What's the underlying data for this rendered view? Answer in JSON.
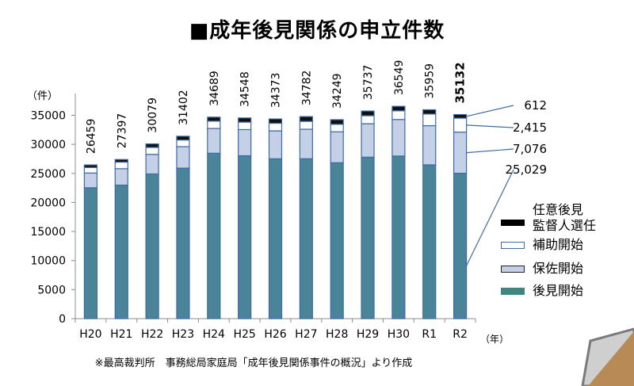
{
  "title": "■成年後見関係の申立件数",
  "source_note": "※最高裁判所　事務総局家庭局「成年後見関係事件の概況」より作成",
  "chart_data": {
    "type": "bar",
    "stacked": true,
    "title": "■成年後見関係の申立件数",
    "ylabel": "（件）",
    "xlabel": "（年）",
    "ylim": [
      0,
      35000
    ],
    "yticks": [
      0,
      5000,
      10000,
      15000,
      20000,
      25000,
      30000,
      35000
    ],
    "categories": [
      "H20",
      "H21",
      "H22",
      "H23",
      "H24",
      "H25",
      "H26",
      "H27",
      "H28",
      "H29",
      "H30",
      "R1",
      "R2"
    ],
    "totals": [
      26459,
      27397,
      30079,
      31402,
      34689,
      34548,
      34373,
      34782,
      34249,
      35737,
      36549,
      35959,
      35132
    ],
    "series": [
      {
        "name": "後見開始",
        "color": "#4a8499",
        "values": [
          22532,
          22983,
          24905,
          25905,
          28472,
          28040,
          27515,
          27521,
          26836,
          27798,
          27989,
          26476,
          25029
        ]
      },
      {
        "name": "保佐開始",
        "color": "#c3d0e6",
        "values": [
          2539,
          2828,
          3375,
          3708,
          4268,
          4510,
          4806,
          5085,
          5325,
          5758,
          6297,
          6745,
          7076
        ]
      },
      {
        "name": "補助開始",
        "color": "#ffffff",
        "values": [
          947,
          1136,
          1197,
          1144,
          1264,
          1282,
          1314,
          1360,
          1297,
          1379,
          1499,
          2000,
          2415
        ]
      },
      {
        "name": "任意後見\n監督人選任",
        "color": "#111111",
        "values": [
          441,
          450,
          602,
          645,
          685,
          716,
          738,
          816,
          791,
          802,
          764,
          738,
          612
        ]
      }
    ],
    "annotations": [
      "612",
      "2,415",
      "7,076",
      "25,029"
    ],
    "legend": {
      "position": "right",
      "items": [
        "任意後見",
        "監督人選任",
        "補助開始",
        "保佐開始",
        "後見開始"
      ]
    }
  }
}
